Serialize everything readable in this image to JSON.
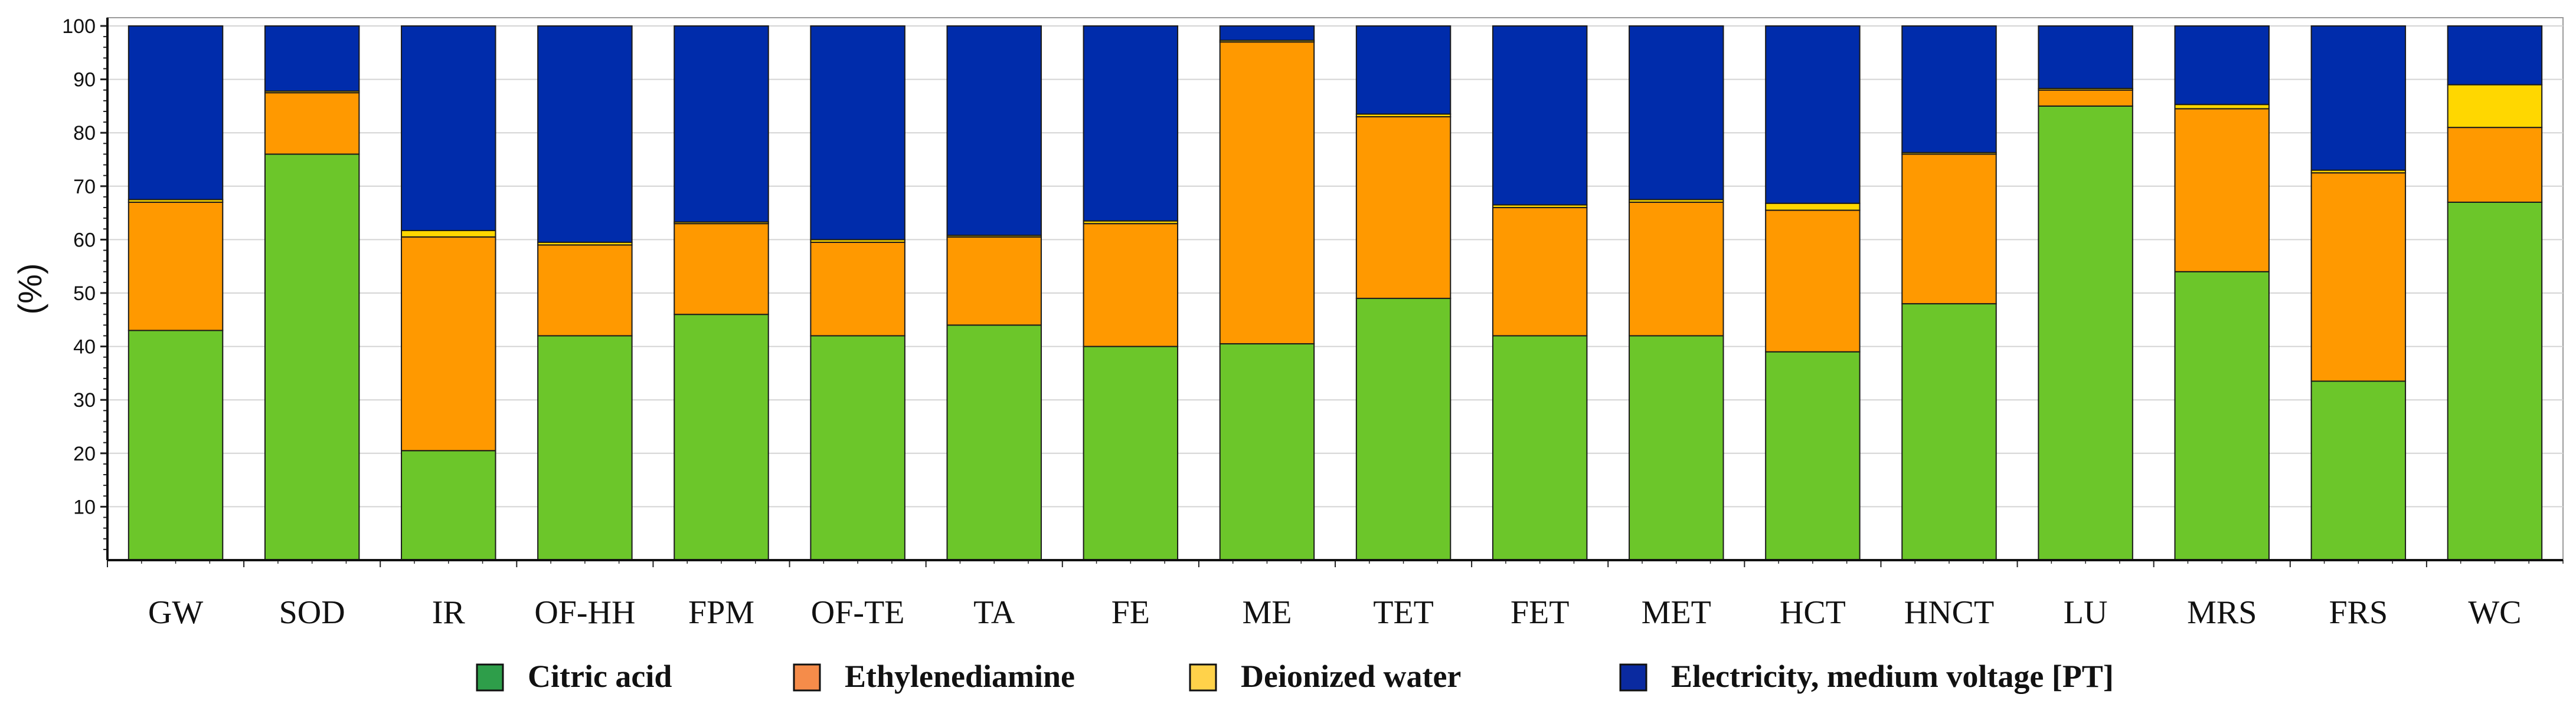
{
  "chart_data": {
    "type": "bar",
    "stacked": true,
    "ylabel": "(%)",
    "xlabel": "",
    "ylim": [
      0,
      100
    ],
    "yticks": [
      10,
      20,
      30,
      40,
      50,
      60,
      70,
      80,
      90,
      100
    ],
    "categories": [
      "GW",
      "SOD",
      "IR",
      "OF-HH",
      "FPM",
      "OF-TE",
      "TA",
      "FE",
      "ME",
      "TET",
      "FET",
      "MET",
      "HCT",
      "HNCT",
      "LU",
      "MRS",
      "FRS",
      "WC"
    ],
    "series": [
      {
        "name": "Citric acid",
        "color": "#6cc62a",
        "values": [
          43,
          76,
          20.5,
          42,
          46,
          42,
          44,
          40,
          40.5,
          49,
          42,
          42,
          39,
          48,
          85,
          54,
          33.5,
          67
        ]
      },
      {
        "name": "Ethylenediamine",
        "color": "#ff9900",
        "values": [
          24,
          11.5,
          40,
          17,
          17,
          17.5,
          16.5,
          23,
          56.5,
          34,
          24,
          25,
          26.5,
          28,
          3,
          30.5,
          39,
          14
        ]
      },
      {
        "name": "Deionized water",
        "color": "#ffd700",
        "values": [
          0.5,
          0.3,
          1.2,
          0.5,
          0.3,
          0.5,
          0.3,
          0.5,
          0.3,
          0.5,
          0.5,
          0.5,
          1.3,
          0.3,
          0.3,
          0.8,
          0.5,
          8
        ]
      },
      {
        "name": "Electricity, medium voltage [PT]",
        "color": "#002cab",
        "values": [
          32.5,
          12.2,
          38.3,
          40.5,
          36.7,
          40,
          39.2,
          36.5,
          2.7,
          16.5,
          33.5,
          32.5,
          33.2,
          23.7,
          11.7,
          14.7,
          27,
          11
        ]
      }
    ],
    "legend": {
      "position": "bottom",
      "entries": [
        {
          "label": "Citric acid",
          "swatch": "#2e9e4a"
        },
        {
          "label": "Ethylenediamine",
          "swatch": "#f58c4a"
        },
        {
          "label": "Deionized water",
          "swatch": "#ffd24a"
        },
        {
          "label": "Electricity, medium voltage [PT]",
          "swatch": "#0a2aa0"
        }
      ]
    }
  }
}
